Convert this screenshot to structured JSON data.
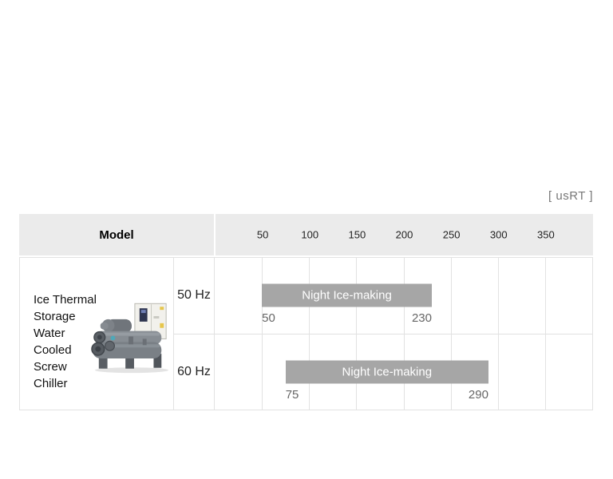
{
  "unit_label": "[ usRT ]",
  "table": {
    "model_header": "Model",
    "model_name": "Ice Thermal\nStorage\nWater\nCooled\nScrew\nChiller",
    "model_image": "water-cooled-screw-chiller-photo"
  },
  "colors": {
    "header_bg": "#ebebeb",
    "grid": "#e2e2e2",
    "bar": "#a6a6a6",
    "bar_label_text": "#ffffff",
    "value_text": "#666666",
    "tick_text": "#222222",
    "unit_text": "#777777"
  },
  "chart_data": {
    "type": "bar",
    "orientation": "horizontal-range",
    "unit": "usRT",
    "axis": {
      "min": 0,
      "max": 400,
      "tick_step": 50,
      "ticks": [
        50,
        100,
        150,
        200,
        250,
        300,
        350
      ]
    },
    "grid": true,
    "rows": [
      {
        "frequency": "50 Hz",
        "bars": [
          {
            "label": "Night Ice-making",
            "start": 50,
            "end": 230
          }
        ]
      },
      {
        "frequency": "60 Hz",
        "bars": [
          {
            "label": "Night Ice-making",
            "start": 75,
            "end": 290
          }
        ]
      }
    ]
  }
}
